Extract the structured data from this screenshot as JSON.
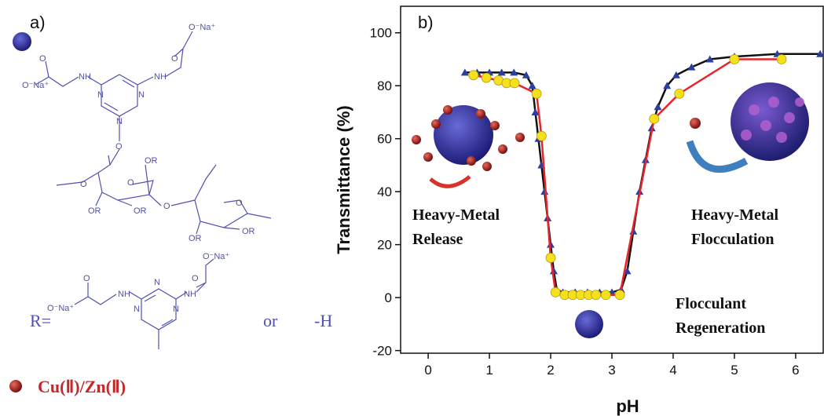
{
  "panel_a": {
    "label": "a)",
    "r_label": "R=",
    "or": "or",
    "h": "-H",
    "legend_metal": "Cu(Ⅱ)/Zn(Ⅱ)",
    "atoms": [
      "O⁻Na⁺",
      "O",
      "NH",
      "NH",
      "N",
      "N",
      "N",
      "O",
      "O⁻Na⁺",
      "O",
      "O",
      "O",
      "O",
      "O",
      "OR",
      "OR",
      "OR",
      "OR",
      "OR",
      "O⁻Na⁺",
      "O",
      "NH",
      "NH",
      "N",
      "N",
      "N",
      "O",
      "O⁻Na⁺"
    ]
  },
  "chart_data": {
    "type": "line",
    "panel_label": "b)",
    "xlabel": "pH",
    "ylabel": "Transmittance (%)",
    "xlim": [
      -0.45,
      6.45
    ],
    "ylim": [
      -21,
      110
    ],
    "xticks": [
      0,
      1,
      2,
      3,
      4,
      5,
      6
    ],
    "yticks": [
      -20,
      0,
      20,
      40,
      60,
      80,
      100
    ],
    "series": [
      {
        "color": "#111111",
        "marker": "triangle",
        "marker_color": "#2c3f9e",
        "x": [
          0.6,
          0.8,
          1.0,
          1.2,
          1.4,
          1.6,
          1.7,
          1.75,
          1.8,
          1.85,
          1.9,
          1.95,
          2.0,
          2.05,
          2.1,
          2.2,
          2.4,
          2.6,
          2.8,
          3.0,
          3.15,
          3.25,
          3.35,
          3.45,
          3.55,
          3.65,
          3.75,
          3.9,
          4.05,
          4.3,
          4.6,
          5.0,
          5.7,
          6.4
        ],
        "values": [
          85,
          85,
          85,
          85,
          85,
          84,
          80,
          70,
          60,
          50,
          40,
          30,
          20,
          10,
          3,
          2,
          2,
          2,
          2,
          2,
          3,
          10,
          25,
          40,
          52,
          64,
          72,
          80,
          84,
          87,
          90,
          91,
          92,
          92
        ]
      },
      {
        "color": "#e8232a",
        "marker": "circle",
        "marker_color": "#f4e01c",
        "x": [
          0.74,
          0.95,
          1.15,
          1.28,
          1.41,
          1.77,
          1.85,
          2.0,
          2.08,
          2.23,
          2.36,
          2.49,
          2.62,
          2.74,
          2.9,
          3.13,
          3.69,
          4.1,
          5.0,
          5.77
        ],
        "values": [
          84,
          83,
          82,
          81,
          81,
          77,
          61,
          15,
          2,
          1,
          1,
          1,
          1,
          1,
          1,
          1,
          67.5,
          77,
          90,
          90
        ]
      }
    ],
    "annotations": [
      [
        "Heavy-Metal",
        "Release"
      ],
      [
        "Heavy-Metal",
        "Flocculation"
      ],
      [
        "Flocculant",
        "Regeneration"
      ]
    ]
  }
}
